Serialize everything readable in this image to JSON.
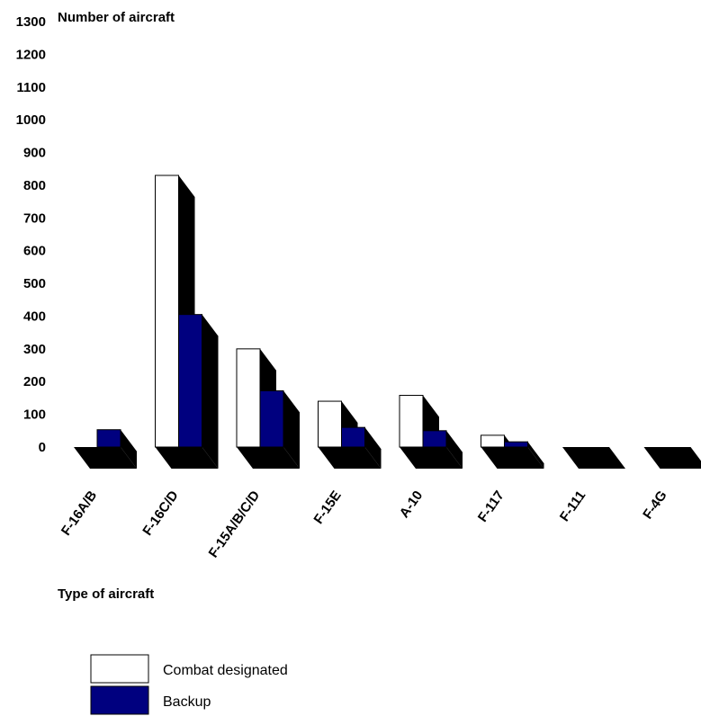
{
  "chart_data": {
    "type": "bar",
    "ylabel": "Number of aircraft",
    "xlabel": "Type of aircraft",
    "ylim": [
      0,
      1300
    ],
    "yticks": [
      0,
      100,
      200,
      300,
      400,
      500,
      600,
      700,
      800,
      900,
      1000,
      1100,
      1200,
      1300
    ],
    "categories": [
      "F-16A/B",
      "F-16C/D",
      "F-15A/B/C/D",
      "F-15E",
      "A-10",
      "F-117",
      "F-111",
      "F-4G"
    ],
    "series": [
      {
        "name": "Combat designated",
        "values": [
          0,
          830,
          300,
          140,
          158,
          36,
          0,
          0
        ]
      },
      {
        "name": "Backup",
        "values": [
          53,
          405,
          172,
          60,
          50,
          16,
          0,
          0
        ]
      }
    ],
    "grid": false,
    "legend_position": "bottom-left",
    "style": "3d-bar"
  },
  "colors": {
    "combat": "#ffffff",
    "backup": "#00007f",
    "shadow": "#000000"
  }
}
